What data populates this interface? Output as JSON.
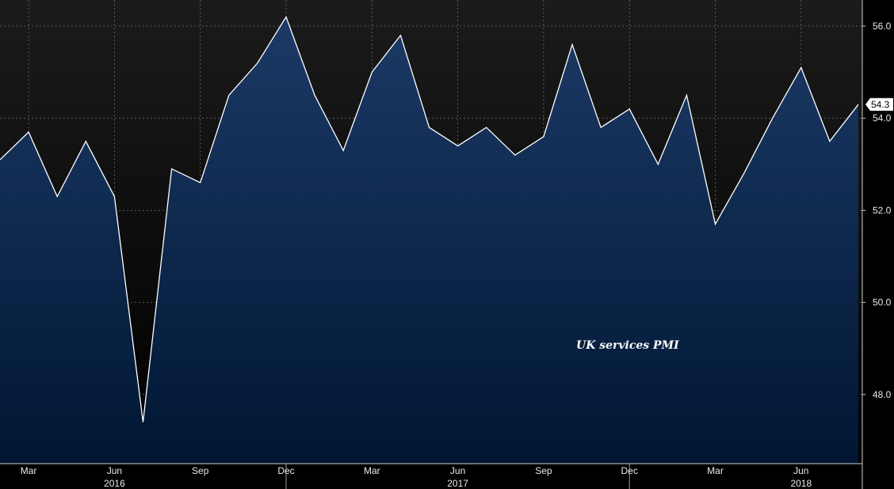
{
  "chart_data": {
    "type": "area",
    "annotation": "UK services PMI",
    "last_value_label": "54.3",
    "x": [
      "2016-02",
      "2016-03",
      "2016-04",
      "2016-05",
      "2016-06",
      "2016-07",
      "2016-08",
      "2016-09",
      "2016-10",
      "2016-11",
      "2016-12",
      "2017-01",
      "2017-02",
      "2017-03",
      "2017-04",
      "2017-05",
      "2017-06",
      "2017-07",
      "2017-08",
      "2017-09",
      "2017-10",
      "2017-11",
      "2017-12",
      "2018-01",
      "2018-02",
      "2018-03",
      "2018-04",
      "2018-05",
      "2018-06",
      "2018-07",
      "2018-08"
    ],
    "values": [
      53.1,
      53.7,
      52.3,
      53.5,
      52.3,
      47.4,
      52.9,
      52.6,
      54.5,
      55.2,
      56.2,
      54.5,
      53.3,
      55.0,
      55.8,
      53.8,
      53.4,
      53.8,
      53.2,
      53.6,
      55.6,
      53.8,
      54.2,
      53.0,
      54.5,
      51.7,
      52.8,
      54.0,
      55.1,
      53.5,
      54.3
    ],
    "ylim": [
      46.6,
      56.6
    ],
    "yticks": [
      "56.0",
      "54.0",
      "52.0",
      "50.0",
      "48.0"
    ],
    "month_labels": [
      {
        "label": "Mar",
        "x": "2016-03"
      },
      {
        "label": "Jun",
        "x": "2016-06"
      },
      {
        "label": "Sep",
        "x": "2016-09"
      },
      {
        "label": "Dec",
        "x": "2016-12"
      },
      {
        "label": "Mar",
        "x": "2017-03"
      },
      {
        "label": "Jun",
        "x": "2017-06"
      },
      {
        "label": "Sep",
        "x": "2017-09"
      },
      {
        "label": "Dec",
        "x": "2017-12"
      },
      {
        "label": "Mar",
        "x": "2018-03"
      },
      {
        "label": "Jun",
        "x": "2018-06"
      }
    ],
    "year_labels": [
      {
        "label": "2016",
        "x": "2016-06"
      },
      {
        "label": "2017",
        "x": "2017-06"
      },
      {
        "label": "2018",
        "x": "2018-06"
      }
    ],
    "year_dividers": [
      "2016-12",
      "2017-12"
    ],
    "grid": true,
    "colors": {
      "background": "#000000",
      "fill_top": "#1c3a66",
      "fill_bottom": "#001633",
      "line": "#ffffff",
      "grid": "#6b6b6b",
      "last_value_box": "#ffffff"
    }
  }
}
